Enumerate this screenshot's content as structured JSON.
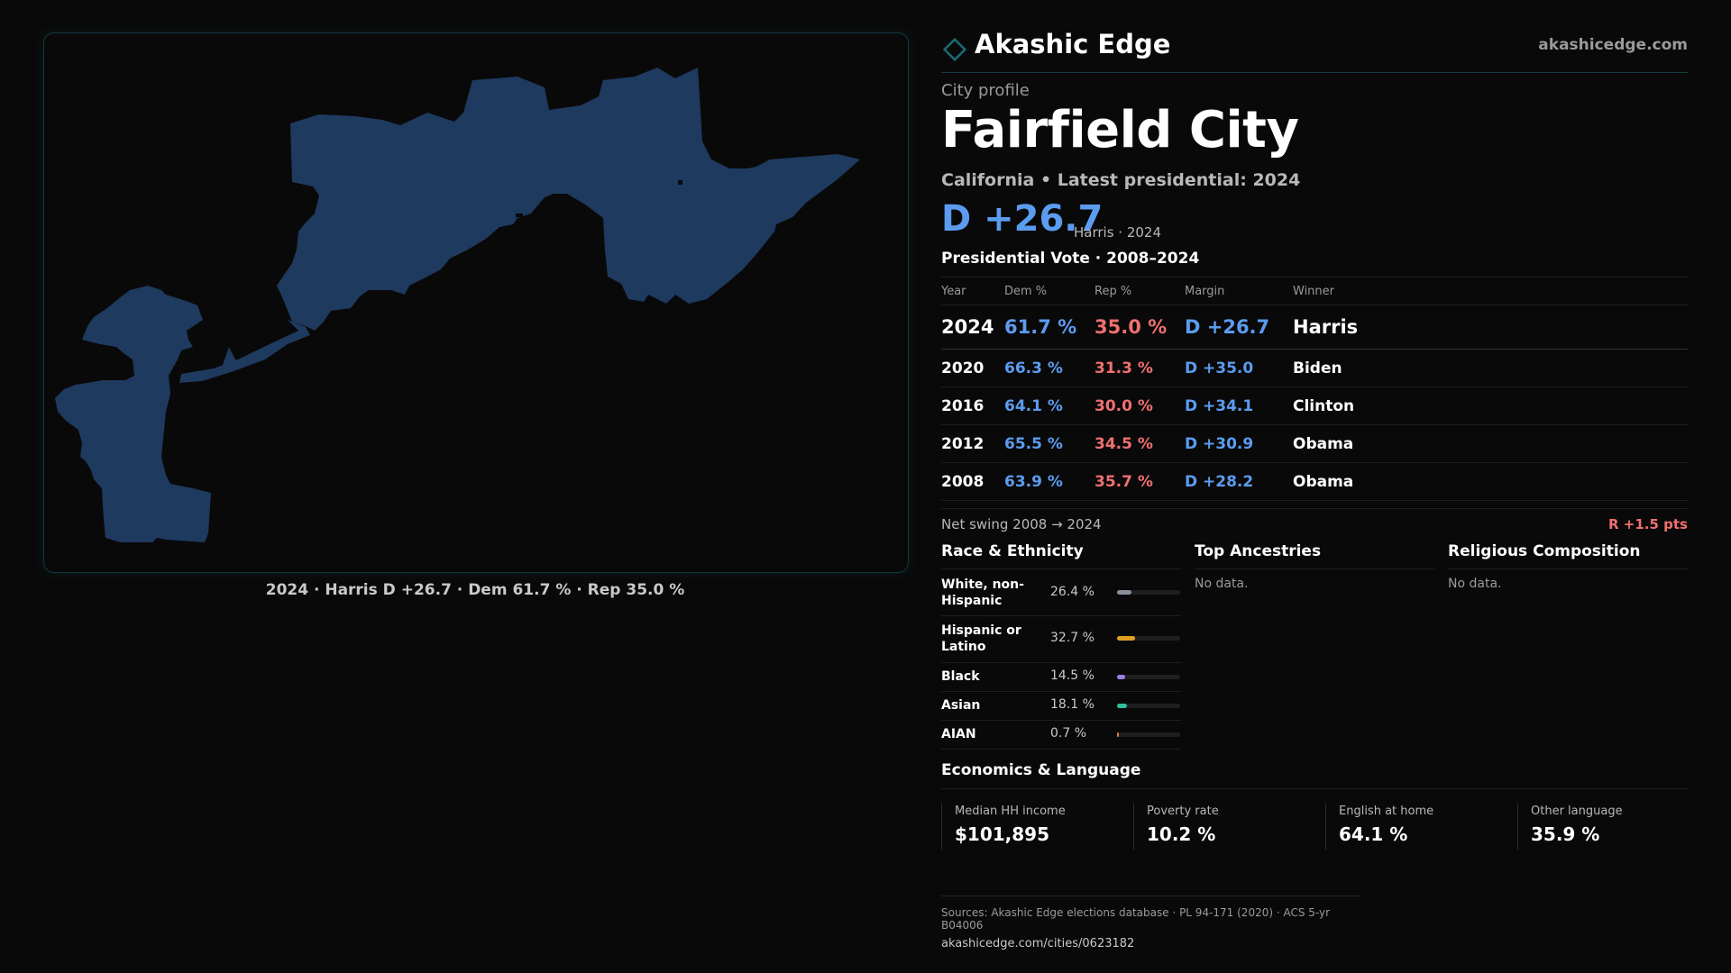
{
  "map": {
    "caption": "2024 · Harris D +26.7 · Dem 61.7 % · Rep 35.0 %",
    "fill_color": "#1e3a5f"
  },
  "brand": {
    "name": "Akashic Edge",
    "url": "akashicedge.com",
    "logo_icon": "diamond-outline-icon",
    "accent": "#1a6b73"
  },
  "profile": {
    "eyebrow": "City profile",
    "title": "Fairfield City",
    "subtitle": "California • Latest presidential: 2024",
    "margin": "D +26.7",
    "margin_note": "Harris · 2024"
  },
  "vote": {
    "title": "Presidential Vote · 2008–2024",
    "headers": {
      "year": "Year",
      "dem": "Dem %",
      "rep": "Rep %",
      "margin": "Margin",
      "winner": "Winner"
    },
    "rows": [
      {
        "year": "2024",
        "dem": "61.7 %",
        "rep": "35.0 %",
        "margin": "D +26.7",
        "winner": "Harris"
      },
      {
        "year": "2020",
        "dem": "66.3 %",
        "rep": "31.3 %",
        "margin": "D +35.0",
        "winner": "Biden"
      },
      {
        "year": "2016",
        "dem": "64.1 %",
        "rep": "30.0 %",
        "margin": "D +34.1",
        "winner": "Clinton"
      },
      {
        "year": "2012",
        "dem": "65.5 %",
        "rep": "34.5 %",
        "margin": "D +30.9",
        "winner": "Obama"
      },
      {
        "year": "2008",
        "dem": "63.9 %",
        "rep": "35.7 %",
        "margin": "D +28.2",
        "winner": "Obama"
      }
    ],
    "swing_label": "Net swing 2008 → 2024",
    "swing_value": "R +1.5 pts",
    "dem_color": "#5b9cf0",
    "rep_color": "#f07070"
  },
  "race": {
    "title": "Race & Ethnicity",
    "items": [
      {
        "label": "White, non-Hispanic",
        "pct": "26.4 %",
        "fraction": 0.264,
        "color": "#8a8f9c"
      },
      {
        "label": "Hispanic or Latino",
        "pct": "32.7 %",
        "fraction": 0.327,
        "color": "#e0a020"
      },
      {
        "label": "Black",
        "pct": "14.5 %",
        "fraction": 0.145,
        "color": "#9b80e0"
      },
      {
        "label": "Asian",
        "pct": "18.1 %",
        "fraction": 0.181,
        "color": "#2ec29a"
      },
      {
        "label": "AIAN",
        "pct": "0.7 %",
        "fraction": 0.007,
        "color": "#e07a3a"
      }
    ]
  },
  "ancestries": {
    "title": "Top Ancestries",
    "empty": "No data."
  },
  "religion": {
    "title": "Religious Composition",
    "empty": "No data."
  },
  "economics": {
    "title": "Economics & Language",
    "stats": [
      {
        "label": "Median HH income",
        "value": "$101,895"
      },
      {
        "label": "Poverty rate",
        "value": "10.2 %"
      },
      {
        "label": "English at home",
        "value": "64.1 %"
      },
      {
        "label": "Other language",
        "value": "35.9 %"
      }
    ]
  },
  "sources": {
    "line": "Sources: Akashic Edge elections database · PL 94-171 (2020) · ACS 5-yr B04006",
    "url": "akashicedge.com/cities/0623182"
  }
}
